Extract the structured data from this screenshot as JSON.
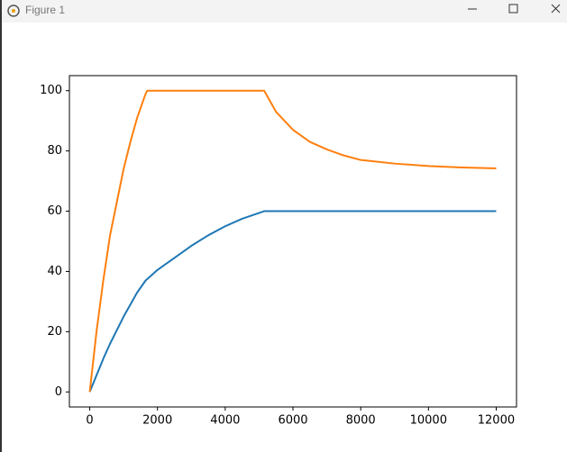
{
  "window_title": "Figure 1",
  "chart_data": {
    "type": "line",
    "x": [
      0,
      200,
      400,
      600,
      800,
      1000,
      1200,
      1400,
      1650,
      1700,
      2000,
      2500,
      3000,
      3500,
      4000,
      4500,
      5150,
      5500,
      6000,
      6500,
      7000,
      7500,
      8000,
      9000,
      10000,
      11000,
      12000
    ],
    "series": [
      {
        "color": "#1f77b4",
        "values": [
          0,
          5.5,
          11,
          16,
          20.5,
          25,
          29,
          33,
          37,
          37.5,
          40.5,
          44.5,
          48.5,
          52,
          55,
          57.5,
          60,
          60,
          60,
          60,
          60,
          60,
          60,
          60,
          60,
          60,
          60
        ]
      },
      {
        "color": "#ff7f0e",
        "values": [
          0,
          20,
          37,
          52,
          63,
          74,
          83,
          91,
          99,
          100,
          100,
          100,
          100,
          100,
          100,
          100,
          100,
          93,
          87,
          83,
          80.5,
          78.5,
          77,
          75.8,
          75,
          74.5,
          74.2
        ]
      }
    ],
    "xlim": [
      -600,
      12600
    ],
    "ylim": [
      -5,
      105
    ],
    "xticks": [
      0,
      2000,
      4000,
      6000,
      8000,
      10000,
      12000
    ],
    "yticks": [
      0,
      20,
      40,
      60,
      80,
      100
    ]
  }
}
